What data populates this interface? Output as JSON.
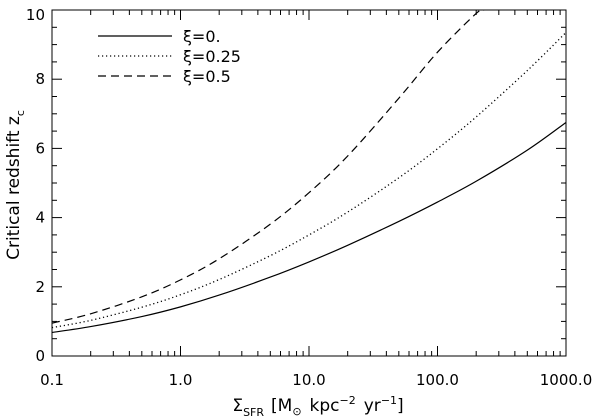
{
  "chart_data": {
    "type": "line",
    "xscale": "log",
    "xlim": [
      0.1,
      1000.0
    ],
    "ylim": [
      0,
      10
    ],
    "xlabel": {
      "sigma": "Σ",
      "sub": "SFR",
      "open": "[M",
      "odot": "⊙",
      "kpc": "kpc",
      "kpc_exp": "−2",
      "yr": "yr",
      "yr_exp": "−1",
      "close": "]"
    },
    "ylabel": {
      "main": "Critical redshift z",
      "sub": "c"
    },
    "xticks": [
      {
        "value": 0.1,
        "label": "0.1"
      },
      {
        "value": 1.0,
        "label": "1.0"
      },
      {
        "value": 10.0,
        "label": "10.0"
      },
      {
        "value": 100.0,
        "label": "100.0"
      },
      {
        "value": 1000.0,
        "label": "1000.0"
      }
    ],
    "yticks": [
      {
        "value": 0,
        "label": "0"
      },
      {
        "value": 2,
        "label": "2"
      },
      {
        "value": 4,
        "label": "4"
      },
      {
        "value": 6,
        "label": "6"
      },
      {
        "value": 8,
        "label": "8"
      },
      {
        "value": 10,
        "label": "10"
      }
    ],
    "legend_position": "top-left",
    "series": [
      {
        "name": "ξ=0.",
        "style": "solid",
        "x": [
          0.1,
          0.2,
          0.5,
          1.0,
          2.0,
          5.0,
          10.0,
          20.0,
          50.0,
          100.0,
          200.0,
          500.0,
          1000.0
        ],
        "y": [
          0.68,
          0.85,
          1.14,
          1.42,
          1.76,
          2.28,
          2.72,
          3.2,
          3.89,
          4.45,
          5.05,
          5.95,
          6.75
        ]
      },
      {
        "name": "ξ=0.25",
        "style": "dotted",
        "x": [
          0.1,
          0.2,
          0.5,
          1.0,
          2.0,
          5.0,
          10.0,
          20.0,
          50.0,
          100.0,
          200.0,
          500.0,
          1000.0
        ],
        "y": [
          0.82,
          1.03,
          1.41,
          1.77,
          2.21,
          2.9,
          3.5,
          4.16,
          5.15,
          5.99,
          6.91,
          8.25,
          9.35
        ]
      },
      {
        "name": "ξ=0.5",
        "style": "dashed",
        "x": [
          0.1,
          0.2,
          0.5,
          1.0,
          2.0,
          5.0,
          10.0,
          20.0,
          50.0,
          100.0,
          200.0,
          230.0
        ],
        "y": [
          0.95,
          1.22,
          1.71,
          2.2,
          2.81,
          3.81,
          4.72,
          5.78,
          7.45,
          8.78,
          9.9,
          10.0
        ]
      }
    ]
  }
}
